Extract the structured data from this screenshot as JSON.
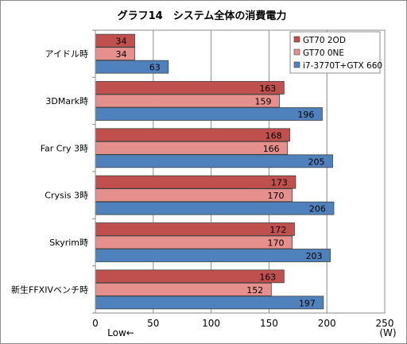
{
  "chart_data": {
    "type": "bar",
    "orientation": "horizontal",
    "title": "グラフ14　システム全体の消費電力",
    "categories": [
      "アイドル時",
      "3DMark時",
      "Far Cry 3時",
      "Crysis 3時",
      "Skyrim時",
      "新生FFXIVベンチ時"
    ],
    "series": [
      {
        "name": "GT70 2OD",
        "values": [
          34,
          163,
          168,
          173,
          172,
          163
        ],
        "color": "#c0504d"
      },
      {
        "name": "GT70 0NE",
        "values": [
          34,
          159,
          166,
          170,
          170,
          152
        ],
        "color": "#e6908d"
      },
      {
        "name": "i7-3770T+GTX 660",
        "values": [
          63,
          196,
          205,
          206,
          203,
          197
        ],
        "color": "#4f81bd"
      }
    ],
    "xlim": [
      0,
      250
    ],
    "xticks": [
      "0",
      "50",
      "100",
      "150",
      "200",
      "250"
    ],
    "unit_label": "(W)",
    "direction_label": "Low←",
    "grid": true,
    "legend_position": "top-right"
  }
}
